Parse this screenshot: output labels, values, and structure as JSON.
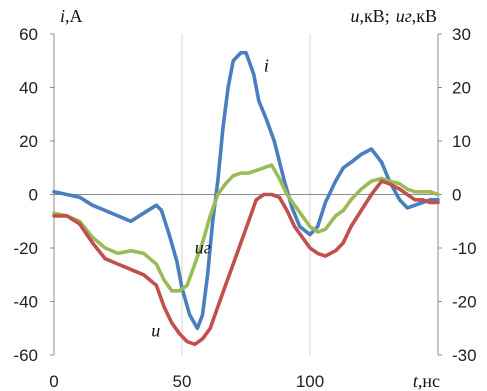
{
  "chart_data": {
    "type": "line",
    "x_range": [
      0,
      150
    ],
    "x_ticks": [
      0,
      50,
      100
    ],
    "y_left_range": [
      -60,
      60
    ],
    "y_left_ticks": [
      60,
      40,
      20,
      0,
      -20,
      -40,
      -60
    ],
    "y_right_range": [
      -30,
      30
    ],
    "y_right_ticks": [
      30,
      20,
      10,
      0,
      -10,
      -20,
      -30
    ],
    "grid": "vertical",
    "labels": {
      "y_left_var": "i",
      "y_left_unit": ",A",
      "y_right_var1": "u",
      "y_right_unit1": ",кВ;",
      "y_right_var2": "uг",
      "y_right_unit2": ",кВ",
      "x_var": "t",
      "x_unit": ",нс"
    },
    "series": [
      {
        "name": "i",
        "axis": "left",
        "color": "#4a7ebf",
        "points": [
          [
            0,
            1
          ],
          [
            5,
            0
          ],
          [
            10,
            -1
          ],
          [
            15,
            -4
          ],
          [
            20,
            -6
          ],
          [
            25,
            -8
          ],
          [
            30,
            -10
          ],
          [
            35,
            -7
          ],
          [
            40,
            -4
          ],
          [
            42,
            -6
          ],
          [
            45,
            -15
          ],
          [
            48,
            -25
          ],
          [
            50,
            -35
          ],
          [
            53,
            -45
          ],
          [
            56,
            -50
          ],
          [
            58,
            -45
          ],
          [
            60,
            -30
          ],
          [
            62,
            -10
          ],
          [
            64,
            5
          ],
          [
            66,
            25
          ],
          [
            68,
            40
          ],
          [
            70,
            50
          ],
          [
            73,
            53
          ],
          [
            75,
            53
          ],
          [
            78,
            45
          ],
          [
            80,
            35
          ],
          [
            83,
            28
          ],
          [
            86,
            20
          ],
          [
            90,
            5
          ],
          [
            93,
            -5
          ],
          [
            96,
            -12
          ],
          [
            100,
            -15
          ],
          [
            103,
            -12
          ],
          [
            106,
            -3
          ],
          [
            110,
            5
          ],
          [
            113,
            10
          ],
          [
            116,
            12
          ],
          [
            120,
            15
          ],
          [
            124,
            17
          ],
          [
            128,
            12
          ],
          [
            131,
            5
          ],
          [
            135,
            -2
          ],
          [
            138,
            -5
          ],
          [
            141,
            -4
          ],
          [
            144,
            -3
          ],
          [
            147,
            -2
          ],
          [
            150,
            -2
          ]
        ]
      },
      {
        "name": "uг",
        "axis": "right",
        "color": "#9bbb59",
        "points": [
          [
            0,
            -3.5
          ],
          [
            5,
            -4
          ],
          [
            10,
            -5
          ],
          [
            15,
            -8
          ],
          [
            20,
            -10
          ],
          [
            25,
            -11
          ],
          [
            30,
            -10.5
          ],
          [
            35,
            -11
          ],
          [
            40,
            -13
          ],
          [
            43,
            -16
          ],
          [
            46,
            -18
          ],
          [
            49,
            -18
          ],
          [
            52,
            -17
          ],
          [
            55,
            -13
          ],
          [
            58,
            -9
          ],
          [
            61,
            -4
          ],
          [
            64,
            0
          ],
          [
            67,
            2
          ],
          [
            70,
            3.5
          ],
          [
            73,
            4
          ],
          [
            76,
            4
          ],
          [
            79,
            4.5
          ],
          [
            82,
            5
          ],
          [
            85,
            5.5
          ],
          [
            88,
            3
          ],
          [
            91,
            0
          ],
          [
            94,
            -2
          ],
          [
            97,
            -4
          ],
          [
            100,
            -6
          ],
          [
            103,
            -7
          ],
          [
            106,
            -6.5
          ],
          [
            110,
            -4
          ],
          [
            113,
            -3
          ],
          [
            116,
            -1
          ],
          [
            120,
            1
          ],
          [
            124,
            2.5
          ],
          [
            128,
            3
          ],
          [
            131,
            2.5
          ],
          [
            135,
            2
          ],
          [
            138,
            1
          ],
          [
            141,
            0.5
          ],
          [
            144,
            0.5
          ],
          [
            147,
            0.5
          ],
          [
            150,
            0
          ]
        ]
      },
      {
        "name": "u",
        "axis": "right",
        "color": "#c0504d",
        "points": [
          [
            0,
            -4
          ],
          [
            5,
            -4
          ],
          [
            10,
            -5.5
          ],
          [
            15,
            -9
          ],
          [
            20,
            -12
          ],
          [
            25,
            -13
          ],
          [
            30,
            -14
          ],
          [
            35,
            -15
          ],
          [
            40,
            -17
          ],
          [
            43,
            -21
          ],
          [
            46,
            -24
          ],
          [
            49,
            -26
          ],
          [
            52,
            -27.5
          ],
          [
            55,
            -28
          ],
          [
            58,
            -27
          ],
          [
            61,
            -25
          ],
          [
            64,
            -21
          ],
          [
            67,
            -17
          ],
          [
            70,
            -13
          ],
          [
            73,
            -9
          ],
          [
            76,
            -5
          ],
          [
            79,
            -1
          ],
          [
            82,
            0
          ],
          [
            85,
            0
          ],
          [
            88,
            -0.5
          ],
          [
            91,
            -3
          ],
          [
            94,
            -6
          ],
          [
            97,
            -8
          ],
          [
            100,
            -10
          ],
          [
            103,
            -11
          ],
          [
            106,
            -11.5
          ],
          [
            110,
            -10.5
          ],
          [
            113,
            -9
          ],
          [
            116,
            -6
          ],
          [
            120,
            -3
          ],
          [
            124,
            0
          ],
          [
            128,
            2.5
          ],
          [
            131,
            2
          ],
          [
            135,
            1
          ],
          [
            138,
            0
          ],
          [
            141,
            -1
          ],
          [
            144,
            -1
          ],
          [
            147,
            -1.5
          ],
          [
            150,
            -1.5
          ]
        ]
      }
    ],
    "series_labels": [
      {
        "text": "i",
        "x": 82,
        "y": 46,
        "axis": "left"
      },
      {
        "text": "uг",
        "x": 55,
        "y": -11,
        "axis": "right"
      },
      {
        "text": "u",
        "x": 38,
        "y": -26.5,
        "axis": "right"
      }
    ]
  }
}
